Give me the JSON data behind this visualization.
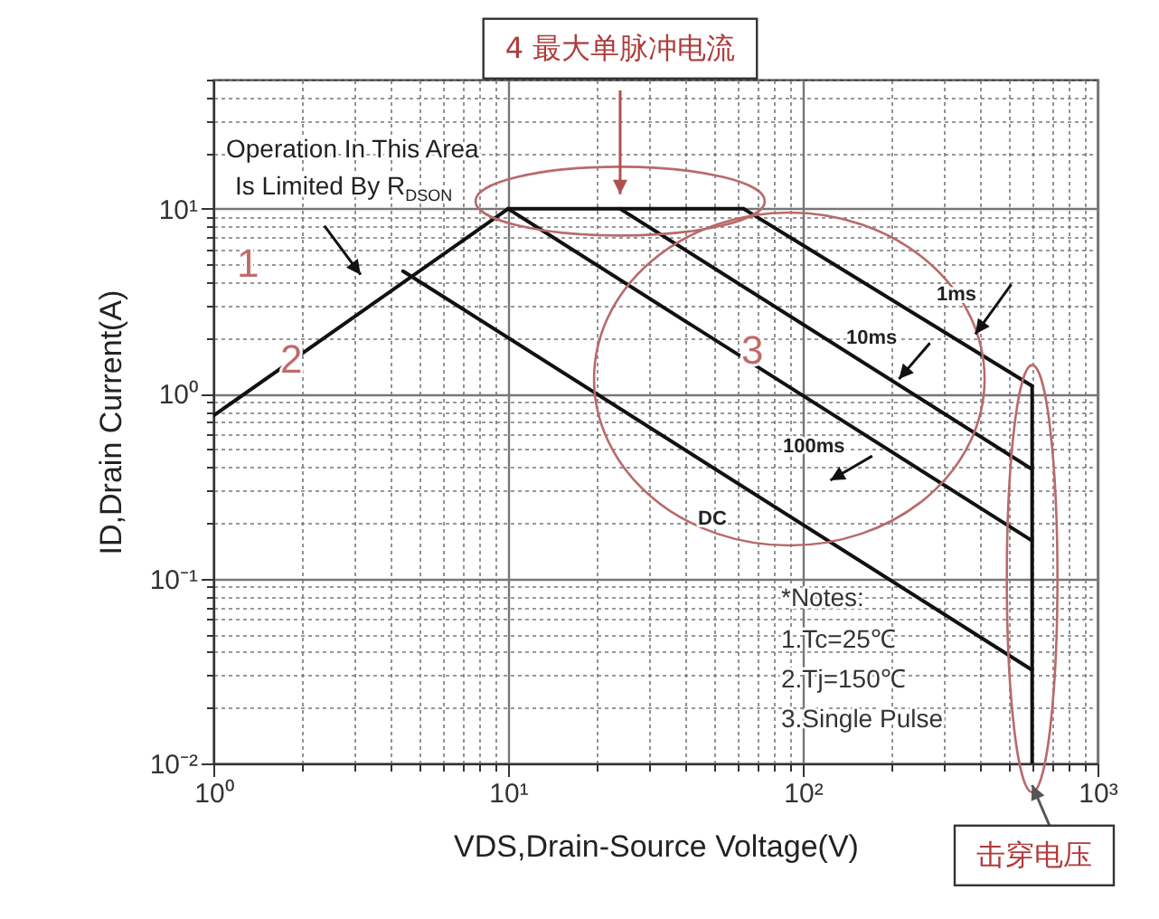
{
  "chart_data": {
    "type": "line",
    "xlabel": "VDS,Drain-Source Voltage(V)",
    "ylabel": "ID,Drain Current(A)",
    "log": "xy",
    "grid": true,
    "marker": "none",
    "line_style": "solid",
    "xlim": [
      1,
      1000
    ],
    "ylim": [
      0.01,
      50
    ],
    "xticks": [
      {
        "value": 1,
        "label": "10⁰"
      },
      {
        "value": 2,
        "label": null
      },
      {
        "value": 3,
        "label": null
      },
      {
        "value": 4,
        "label": null
      },
      {
        "value": 5,
        "label": null
      },
      {
        "value": 6,
        "label": null
      },
      {
        "value": 7,
        "label": null
      },
      {
        "value": 8,
        "label": null
      },
      {
        "value": 9,
        "label": null
      },
      {
        "value": 10,
        "label": "10¹"
      },
      {
        "value": 20,
        "label": null
      },
      {
        "value": 30,
        "label": null
      },
      {
        "value": 40,
        "label": null
      },
      {
        "value": 50,
        "label": null
      },
      {
        "value": 60,
        "label": null
      },
      {
        "value": 70,
        "label": null
      },
      {
        "value": 80,
        "label": null
      },
      {
        "value": 90,
        "label": null
      },
      {
        "value": 100,
        "label": "10²"
      },
      {
        "value": 200,
        "label": null
      },
      {
        "value": 300,
        "label": null
      },
      {
        "value": 400,
        "label": null
      },
      {
        "value": 500,
        "label": null
      },
      {
        "value": 600,
        "label": null
      },
      {
        "value": 700,
        "label": null
      },
      {
        "value": 800,
        "label": null
      },
      {
        "value": 900,
        "label": null
      },
      {
        "value": 1000,
        "label": "10³"
      }
    ],
    "yticks": [
      {
        "value": 0.01,
        "label": "10⁻²"
      },
      {
        "value": 0.02,
        "label": null
      },
      {
        "value": 0.03,
        "label": null
      },
      {
        "value": 0.04,
        "label": null
      },
      {
        "value": 0.05,
        "label": null
      },
      {
        "value": 0.06,
        "label": null
      },
      {
        "value": 0.07,
        "label": null
      },
      {
        "value": 0.08,
        "label": null
      },
      {
        "value": 0.09,
        "label": null
      },
      {
        "value": 0.1,
        "label": "10⁻¹"
      },
      {
        "value": 0.2,
        "label": null
      },
      {
        "value": 0.3,
        "label": null
      },
      {
        "value": 0.4,
        "label": null
      },
      {
        "value": 0.5,
        "label": null
      },
      {
        "value": 0.6,
        "label": null
      },
      {
        "value": 0.7,
        "label": null
      },
      {
        "value": 0.8,
        "label": null
      },
      {
        "value": 0.9,
        "label": null
      },
      {
        "value": 1,
        "label": "10⁰"
      },
      {
        "value": 2,
        "label": null
      },
      {
        "value": 3,
        "label": null
      },
      {
        "value": 4,
        "label": null
      },
      {
        "value": 5,
        "label": null
      },
      {
        "value": 6,
        "label": null
      },
      {
        "value": 7,
        "label": null
      },
      {
        "value": 8,
        "label": null
      },
      {
        "value": 9,
        "label": null
      },
      {
        "value": 10,
        "label": "10¹"
      },
      {
        "value": 20,
        "label": null
      },
      {
        "value": 30,
        "label": null
      },
      {
        "value": 40,
        "label": null
      },
      {
        "value": 50,
        "label": null
      }
    ],
    "series": [
      {
        "color": "#111111",
        "x": [
          1,
          10
        ],
        "values": [
          0.76,
          10
        ]
      },
      {
        "color": "#111111",
        "x": [
          10,
          63
        ],
        "values": [
          10,
          10
        ]
      },
      {
        "color": "#111111",
        "x": [
          63,
          600
        ],
        "values": [
          10,
          1.1
        ]
      },
      {
        "color": "#111111",
        "x": [
          24,
          600
        ],
        "values": [
          10,
          0.39
        ]
      },
      {
        "color": "#111111",
        "x": [
          10,
          600
        ],
        "values": [
          10,
          0.16
        ]
      },
      {
        "color": "#111111",
        "x": [
          4.4,
          600
        ],
        "values": [
          4.6,
          0.032
        ]
      },
      {
        "color": "#111111",
        "x": [
          600,
          600
        ],
        "values": [
          1.1,
          0.01
        ]
      }
    ],
    "annotations": [
      "Operation In This Area",
      "Is Limited By R$_{DSON}$",
      "1",
      "2",
      "3",
      "1ms",
      "10ms",
      "100ms",
      "DC",
      "*Notes:",
      "1.Tc=25℃",
      "2.Tj=150℃",
      "3.Single Pulse",
      "4 最大单脉冲电流",
      "击穿电压"
    ]
  }
}
